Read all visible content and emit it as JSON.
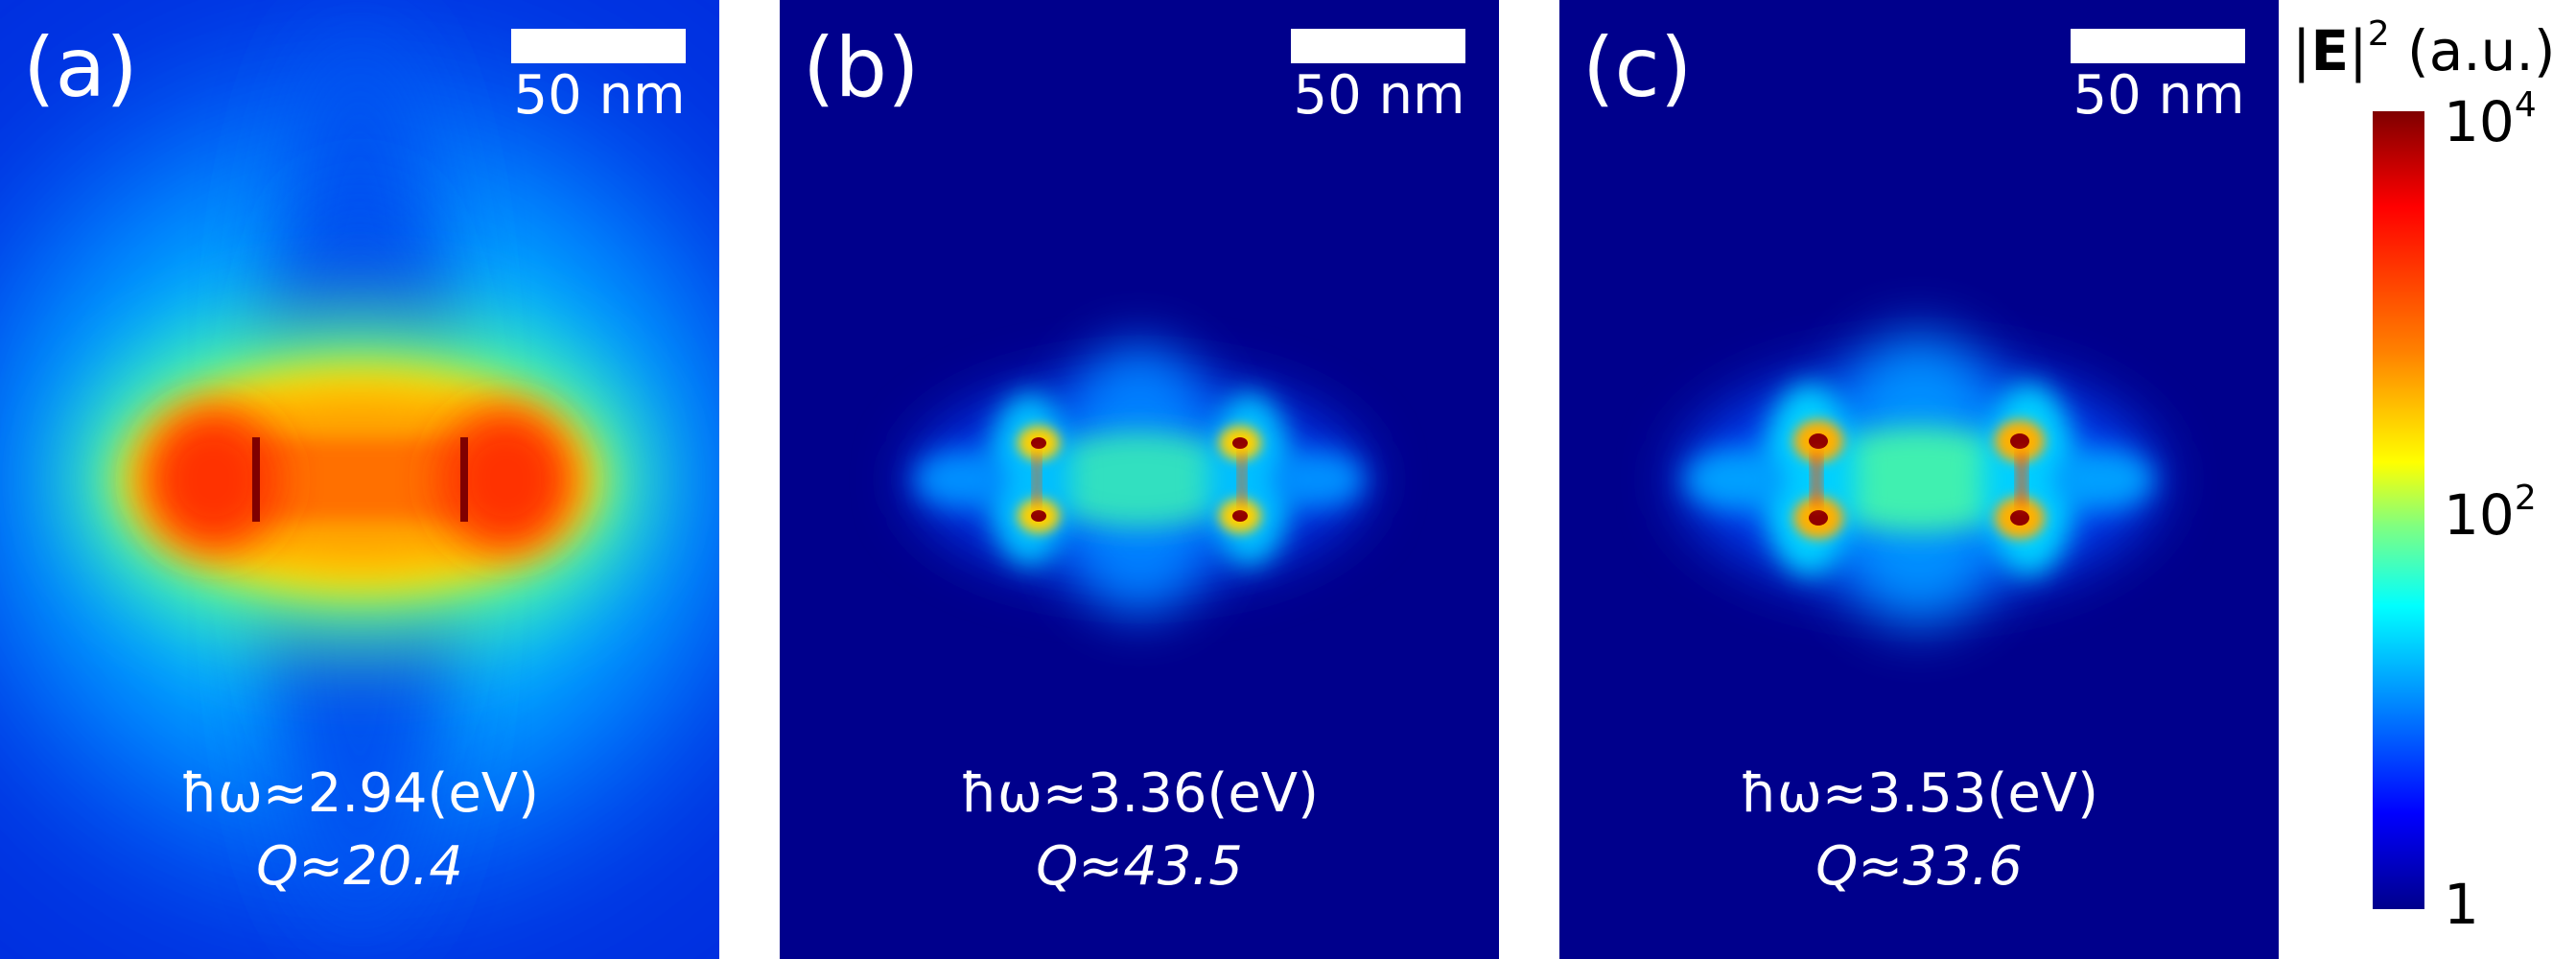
{
  "panels": [
    {
      "label": "(a)",
      "scale_bar": "50 nm",
      "energy": "ħω≈2.94(eV)",
      "q_factor": "Q≈20.4"
    },
    {
      "label": "(b)",
      "scale_bar": "50 nm",
      "energy": "ħω≈3.36(eV)",
      "q_factor": "Q≈43.5"
    },
    {
      "label": "(c)",
      "scale_bar": "50 nm",
      "energy": "ħω≈3.53(eV)",
      "q_factor": "Q≈33.6"
    }
  ],
  "colorbar": {
    "title_pre": "|",
    "title_bold": "E",
    "title_post": "|",
    "title_power": "2",
    "title_unit": " (a.u.)",
    "tick_top_base": "10",
    "tick_top_exp": "4",
    "tick_mid_base": "10",
    "tick_mid_exp": "2",
    "tick_bottom": "1"
  },
  "colors": {
    "background": "#00008c",
    "colormap": "jet"
  }
}
